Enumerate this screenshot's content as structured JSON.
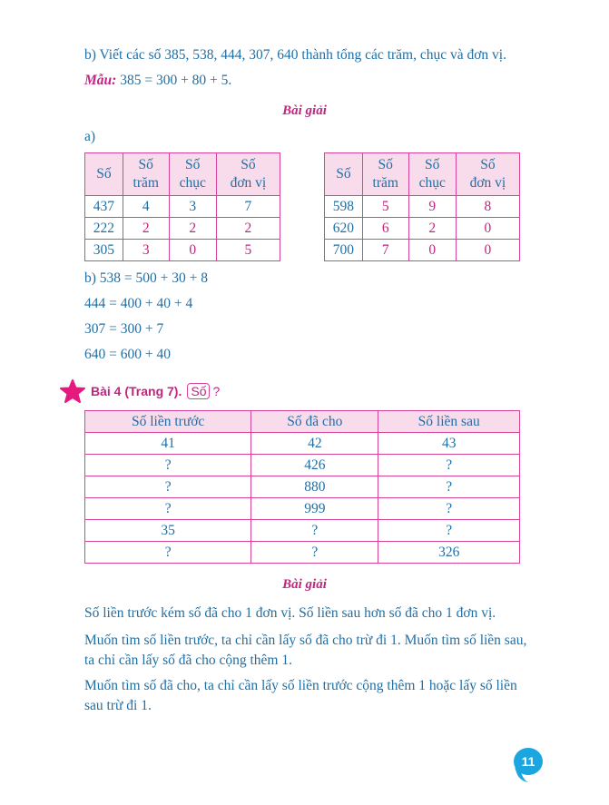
{
  "task_b": "b) Viết các số 385, 538, 444, 307, 640 thành tổng các trăm, chục và đơn vị.",
  "example_label": "Mẫu:",
  "example_text": " 385 = 300 + 80 + 5.",
  "solution_title": "Bài giải",
  "part_a": "a)",
  "table_headers": [
    "Số",
    "Số trăm",
    "Số chục",
    "Số đơn vị"
  ],
  "table_left": [
    [
      "437",
      "4",
      "3",
      "7"
    ],
    [
      "222",
      "2",
      "2",
      "2"
    ],
    [
      "305",
      "3",
      "0",
      "5"
    ]
  ],
  "table_right": [
    [
      "598",
      "5",
      "9",
      "8"
    ],
    [
      "620",
      "6",
      "2",
      "0"
    ],
    [
      "700",
      "7",
      "0",
      "0"
    ]
  ],
  "part_b_lines": [
    "b) 538 = 500 + 30 + 8",
    "444 = 400 + 40 + 4",
    "307 = 300 + 7",
    "640 = 600 + 40"
  ],
  "bai4": {
    "title": "Bài 4 (Trang 7).",
    "box": "Số",
    "question": "?",
    "headers": [
      "Số liền trước",
      "Số đã cho",
      "Số liền sau"
    ],
    "rows": [
      [
        "41",
        "42",
        "43"
      ],
      [
        "?",
        "426",
        "?"
      ],
      [
        "?",
        "880",
        "?"
      ],
      [
        "?",
        "999",
        "?"
      ],
      [
        "35",
        "?",
        "?"
      ],
      [
        "?",
        "?",
        "326"
      ]
    ]
  },
  "solution_title_2": "Bài giải",
  "paragraphs": [
    "Số liền trước kém số đã cho 1 đơn vị. Số liền sau hơn số đã cho 1 đơn vị.",
    "Muốn tìm số liền trước, ta chỉ cần lấy số đã cho trừ đi 1. Muốn tìm số liền sau, ta chỉ cần lấy số đã cho cộng thêm 1.",
    "Muốn tìm số đã cho, ta chỉ cần lấy số liền trước cộng thêm 1 hoặc lấy số liền sau trừ đi 1."
  ],
  "page_number": "11",
  "colors": {
    "text": "#1f6fa5",
    "accent": "#c2247f",
    "table_border": "#d6449a",
    "header_bg": "#f8dcec",
    "page_badge": "#1ba6e0"
  }
}
